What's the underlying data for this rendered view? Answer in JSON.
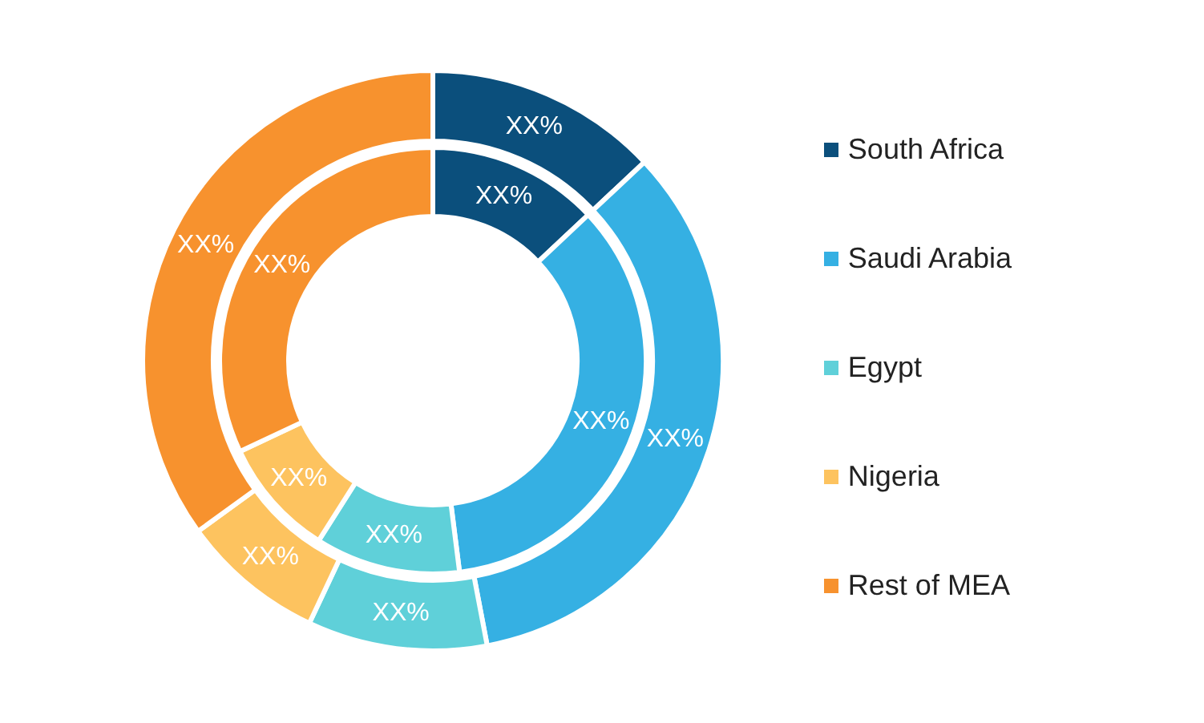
{
  "chart_data": {
    "type": "donut",
    "categories": [
      "South Africa",
      "Saudi Arabia",
      "Egypt",
      "Nigeria",
      "Rest of MEA"
    ],
    "colors": [
      "#0b4f7c",
      "#35b0e3",
      "#5fd0d9",
      "#fdc35f",
      "#f7922e"
    ],
    "series": [
      {
        "values": [
          13,
          34,
          10,
          8,
          35
        ],
        "value_labels": [
          "XX%",
          "XX%",
          "XX%",
          "XX%",
          "XX%"
        ]
      },
      {
        "values": [
          13,
          35,
          11,
          9,
          32
        ],
        "value_labels": [
          "XX%",
          "XX%",
          "XX%",
          "XX%",
          "XX%"
        ]
      }
    ],
    "legend": "right"
  }
}
